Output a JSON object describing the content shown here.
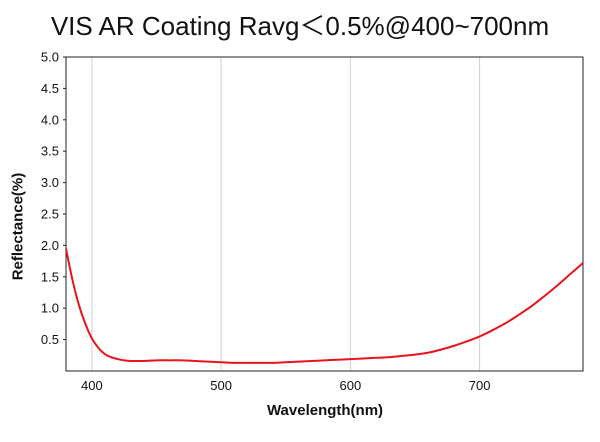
{
  "chart_data": {
    "type": "line",
    "title": "VIS AR Coating Ravg＜0.5%@400~700nm",
    "xlabel": "Wavelength(nm)",
    "ylabel": "Reflectance(%)",
    "xlim": [
      380,
      780
    ],
    "ylim": [
      0,
      5.0
    ],
    "x_ticks": [
      400,
      500,
      600,
      700
    ],
    "y_ticks": [
      0.5,
      1.0,
      1.5,
      2.0,
      2.5,
      3.0,
      3.5,
      4.0,
      4.5,
      5.0
    ],
    "y_tick_labels": [
      "0.5",
      "1.0",
      "1.5",
      "2.0",
      "2.5",
      "3.0",
      "3.5",
      "4.0",
      "4.5",
      "5.0"
    ],
    "grid": "vertical",
    "series": [
      {
        "color": "#e8141b",
        "x": [
          380,
          385,
          390,
          395,
          400,
          405,
          410,
          415,
          420,
          425,
          430,
          440,
          450,
          460,
          470,
          480,
          490,
          500,
          510,
          520,
          530,
          540,
          550,
          560,
          570,
          580,
          590,
          600,
          610,
          620,
          630,
          640,
          650,
          660,
          670,
          680,
          690,
          700,
          710,
          720,
          730,
          740,
          750,
          760,
          770,
          780
        ],
        "y": [
          1.95,
          1.45,
          1.05,
          0.75,
          0.52,
          0.37,
          0.27,
          0.22,
          0.19,
          0.17,
          0.16,
          0.16,
          0.17,
          0.17,
          0.17,
          0.16,
          0.15,
          0.14,
          0.13,
          0.13,
          0.13,
          0.13,
          0.14,
          0.15,
          0.16,
          0.17,
          0.18,
          0.19,
          0.2,
          0.21,
          0.22,
          0.24,
          0.26,
          0.29,
          0.34,
          0.4,
          0.47,
          0.55,
          0.65,
          0.76,
          0.89,
          1.03,
          1.19,
          1.36,
          1.54,
          1.72
        ]
      }
    ]
  }
}
